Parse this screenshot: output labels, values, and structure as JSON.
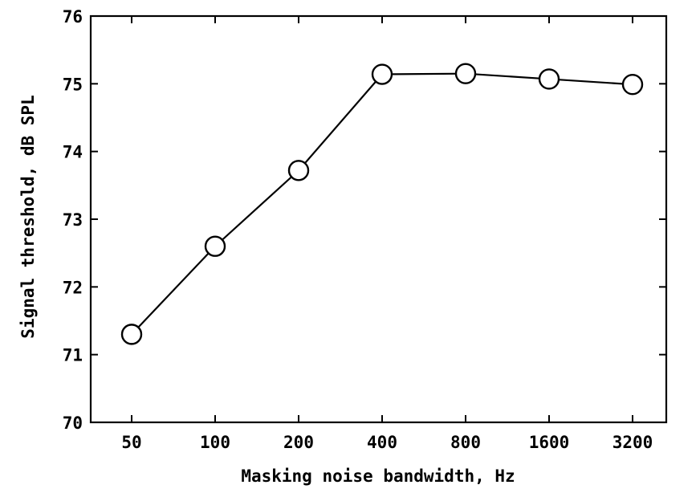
{
  "chart_data": {
    "type": "line",
    "title": "",
    "xlabel": "Masking noise bandwidth, Hz",
    "ylabel": "Signal threshold, dB SPL",
    "x_scale": "log2",
    "categories": [
      "50",
      "100",
      "200",
      "400",
      "800",
      "1600",
      "3200"
    ],
    "x": [
      50,
      100,
      200,
      400,
      800,
      1600,
      3200
    ],
    "ylim": [
      70,
      76
    ],
    "yticks": [
      "70",
      "71",
      "72",
      "73",
      "74",
      "75",
      "76"
    ],
    "grid": false,
    "legend": "none",
    "series": [
      {
        "marker": "open-circle",
        "color": "#000000",
        "values": [
          71.3,
          72.6,
          73.72,
          75.14,
          75.15,
          75.07,
          74.99
        ]
      }
    ]
  }
}
